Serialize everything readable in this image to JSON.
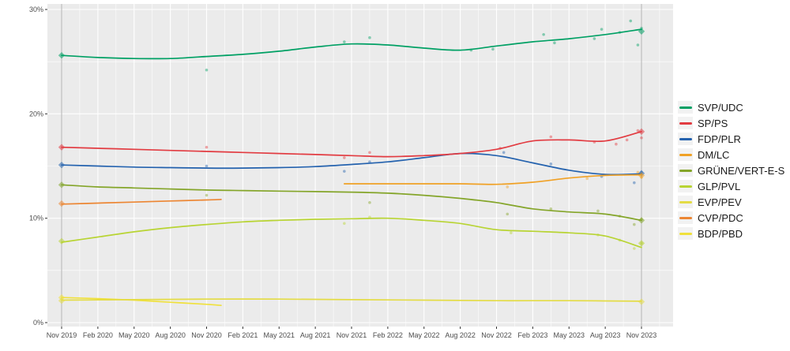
{
  "chart_data": {
    "type": "line",
    "title": "",
    "description": "Swiss party polling trends with poll scatter points and election-result diamonds, Nov 2019 - Nov 2023",
    "x_tick_labels": [
      "Nov 2019",
      "Feb 2020",
      "May 2020",
      "Aug 2020",
      "Nov 2020",
      "Feb 2021",
      "May 2021",
      "Aug 2021",
      "Nov 2021",
      "Feb 2022",
      "May 2022",
      "Aug 2022",
      "Nov 2022",
      "Feb 2023",
      "May 2023",
      "Aug 2023",
      "Nov 2023"
    ],
    "y_tick_labels": [
      "0%",
      "10%",
      "20%",
      "30%"
    ],
    "y_major": [
      0,
      10,
      20,
      30
    ],
    "y_minor": [
      5,
      15,
      25
    ],
    "ylim": [
      0,
      30
    ],
    "grid": "white major+minor gridlines on gray panel",
    "legend_position": "right",
    "election_marker_indices": [
      0,
      16
    ],
    "series": [
      {
        "name": "SVP/UDC",
        "color": "#00a064",
        "trend": [
          [
            0,
            25.6
          ],
          [
            1,
            25.4
          ],
          [
            2,
            25.3
          ],
          [
            3,
            25.3
          ],
          [
            4,
            25.5
          ],
          [
            5,
            25.7
          ],
          [
            6,
            26.0
          ],
          [
            7,
            26.4
          ],
          [
            8,
            26.7
          ],
          [
            9,
            26.6
          ],
          [
            10,
            26.3
          ],
          [
            11,
            26.1
          ],
          [
            12,
            26.5
          ],
          [
            13,
            26.9
          ],
          [
            14,
            27.2
          ],
          [
            15,
            27.6
          ],
          [
            16,
            28.1
          ]
        ],
        "polls": [
          [
            4,
            24.2
          ],
          [
            7.8,
            26.9
          ],
          [
            8.5,
            27.3
          ],
          [
            11.3,
            26.1
          ],
          [
            11.9,
            26.2
          ],
          [
            13.3,
            27.6
          ],
          [
            13.6,
            26.8
          ],
          [
            14.7,
            27.2
          ],
          [
            14.9,
            28.1
          ],
          [
            15.4,
            27.8
          ],
          [
            15.7,
            28.9
          ],
          [
            15.9,
            26.6
          ],
          [
            16,
            28.2
          ]
        ],
        "elections": [
          [
            0,
            25.6
          ],
          [
            16,
            27.9
          ]
        ]
      },
      {
        "name": "SP/PS",
        "color": "#e23b41",
        "trend": [
          [
            0,
            16.8
          ],
          [
            1,
            16.7
          ],
          [
            2,
            16.6
          ],
          [
            3,
            16.5
          ],
          [
            4,
            16.4
          ],
          [
            5,
            16.3
          ],
          [
            6,
            16.2
          ],
          [
            7,
            16.1
          ],
          [
            8,
            16.0
          ],
          [
            9,
            15.9
          ],
          [
            10,
            16.0
          ],
          [
            11,
            16.2
          ],
          [
            12,
            16.6
          ],
          [
            13,
            17.4
          ],
          [
            14,
            17.5
          ],
          [
            15,
            17.4
          ],
          [
            16,
            18.3
          ]
        ],
        "polls": [
          [
            4,
            16.8
          ],
          [
            7.8,
            15.8
          ],
          [
            8.5,
            16.3
          ],
          [
            12.1,
            16.7
          ],
          [
            13.5,
            17.8
          ],
          [
            14.7,
            17.3
          ],
          [
            15.3,
            17.1
          ],
          [
            15.6,
            17.5
          ],
          [
            15.9,
            18.4
          ],
          [
            16,
            17.7
          ]
        ],
        "elections": [
          [
            0,
            16.8
          ],
          [
            16,
            18.3
          ]
        ]
      },
      {
        "name": "FDP/PLR",
        "color": "#2462ae",
        "trend": [
          [
            0,
            15.1
          ],
          [
            1,
            15.0
          ],
          [
            2,
            14.9
          ],
          [
            3,
            14.85
          ],
          [
            4,
            14.8
          ],
          [
            5,
            14.8
          ],
          [
            6,
            14.85
          ],
          [
            7,
            14.95
          ],
          [
            8,
            15.15
          ],
          [
            9,
            15.4
          ],
          [
            10,
            15.8
          ],
          [
            11,
            16.2
          ],
          [
            12,
            16.0
          ],
          [
            13,
            15.3
          ],
          [
            14,
            14.6
          ],
          [
            15,
            14.2
          ],
          [
            16,
            14.25
          ]
        ],
        "polls": [
          [
            4,
            15.0
          ],
          [
            7.8,
            14.5
          ],
          [
            8.5,
            15.4
          ],
          [
            12.2,
            16.3
          ],
          [
            13.5,
            15.2
          ],
          [
            14.9,
            14.0
          ],
          [
            15.8,
            13.4
          ],
          [
            16,
            14.4
          ]
        ],
        "elections": [
          [
            0,
            15.1
          ],
          [
            16,
            14.3
          ]
        ]
      },
      {
        "name": "DM/LC",
        "color": "#f0a125",
        "trend": [
          [
            7.8,
            13.3
          ],
          [
            9,
            13.3
          ],
          [
            10,
            13.3
          ],
          [
            11,
            13.3
          ],
          [
            12,
            13.25
          ],
          [
            13,
            13.45
          ],
          [
            14,
            13.85
          ],
          [
            15,
            14.1
          ],
          [
            16,
            14.15
          ]
        ],
        "polls": [
          [
            12.3,
            13.0
          ],
          [
            14.5,
            13.8
          ],
          [
            15.9,
            14.4
          ],
          [
            16,
            13.9
          ]
        ],
        "elections": [
          [
            16,
            14.1
          ]
        ]
      },
      {
        "name": "GRÜNE/VERT-E-S",
        "color": "#84a529",
        "trend": [
          [
            0,
            13.2
          ],
          [
            1,
            13.0
          ],
          [
            2,
            12.9
          ],
          [
            3,
            12.8
          ],
          [
            4,
            12.7
          ],
          [
            5,
            12.65
          ],
          [
            6,
            12.6
          ],
          [
            7,
            12.55
          ],
          [
            8,
            12.5
          ],
          [
            9,
            12.4
          ],
          [
            10,
            12.2
          ],
          [
            11,
            11.9
          ],
          [
            12,
            11.5
          ],
          [
            13,
            10.9
          ],
          [
            14,
            10.6
          ],
          [
            15,
            10.4
          ],
          [
            16,
            9.8
          ]
        ],
        "polls": [
          [
            4,
            12.2
          ],
          [
            8.5,
            11.5
          ],
          [
            12.3,
            10.4
          ],
          [
            13.5,
            10.9
          ],
          [
            14.8,
            10.7
          ],
          [
            15.4,
            10.2
          ],
          [
            15.8,
            9.4
          ],
          [
            16,
            9.9
          ]
        ],
        "elections": [
          [
            0,
            13.2
          ],
          [
            16,
            9.8
          ]
        ]
      },
      {
        "name": "GLP/PVL",
        "color": "#b8d433",
        "trend": [
          [
            0,
            7.7
          ],
          [
            1,
            8.2
          ],
          [
            2,
            8.7
          ],
          [
            3,
            9.1
          ],
          [
            4,
            9.4
          ],
          [
            5,
            9.65
          ],
          [
            6,
            9.8
          ],
          [
            7,
            9.9
          ],
          [
            8,
            9.95
          ],
          [
            9,
            10.0
          ],
          [
            10,
            9.8
          ],
          [
            11,
            9.5
          ],
          [
            12,
            8.9
          ],
          [
            13,
            8.75
          ],
          [
            14,
            8.6
          ],
          [
            15,
            8.3
          ],
          [
            16,
            7.2
          ]
        ],
        "polls": [
          [
            7.8,
            9.5
          ],
          [
            8.5,
            10.1
          ],
          [
            12.4,
            8.6
          ],
          [
            14.8,
            8.4
          ],
          [
            15.4,
            7.9
          ],
          [
            15.8,
            7.1
          ],
          [
            16,
            7.6
          ]
        ],
        "elections": [
          [
            0,
            7.8
          ],
          [
            16,
            7.6
          ]
        ]
      },
      {
        "name": "EVP/PEV",
        "color": "#e4dc45",
        "trend": [
          [
            0,
            2.15
          ],
          [
            2,
            2.2
          ],
          [
            4,
            2.25
          ],
          [
            6,
            2.25
          ],
          [
            8,
            2.2
          ],
          [
            10,
            2.15
          ],
          [
            12,
            2.1
          ],
          [
            14,
            2.1
          ],
          [
            16,
            2.05
          ]
        ],
        "polls": [],
        "elections": [
          [
            0,
            2.1
          ],
          [
            16,
            2.0
          ]
        ]
      },
      {
        "name": "CVP/PDC",
        "color": "#ec8633",
        "trend": [
          [
            0,
            11.35
          ],
          [
            1,
            11.45
          ],
          [
            2,
            11.55
          ],
          [
            3,
            11.65
          ],
          [
            4,
            11.75
          ],
          [
            4.4,
            11.8
          ]
        ],
        "polls": [],
        "elections": [
          [
            0,
            11.4
          ]
        ]
      },
      {
        "name": "BDP/PBD",
        "color": "#f0e13c",
        "trend": [
          [
            0,
            2.4
          ],
          [
            1,
            2.3
          ],
          [
            2,
            2.15
          ],
          [
            3,
            1.95
          ],
          [
            4,
            1.75
          ],
          [
            4.4,
            1.65
          ]
        ],
        "polls": [],
        "elections": [
          [
            0,
            2.4
          ]
        ]
      }
    ]
  },
  "colors": {
    "page_bg": "#ffffff",
    "panel_bg": "#ebebeb",
    "grid_major": "#ffffff",
    "grid_minor": "#ffffff",
    "axis_text": "#4d4d4d",
    "tick_mark": "#333333",
    "election_line": "#b3b3b3",
    "legend_key_bg": "#f2f2f2",
    "legend_text": "#1a1a1a"
  }
}
